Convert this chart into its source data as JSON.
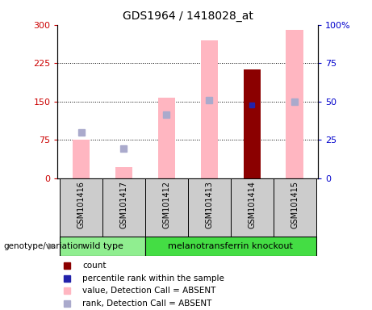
{
  "title": "GDS1964 / 1418028_at",
  "samples": [
    "GSM101416",
    "GSM101417",
    "GSM101412",
    "GSM101413",
    "GSM101414",
    "GSM101415"
  ],
  "pink_bar_heights": [
    75,
    22,
    158,
    270,
    0,
    290
  ],
  "dark_red_bar_height": [
    0,
    0,
    0,
    0,
    213,
    0
  ],
  "blue_marker_val": [
    0,
    0,
    0,
    0,
    143,
    0
  ],
  "light_blue_markers": [
    90,
    58,
    125,
    152,
    0,
    150
  ],
  "ylim_left": [
    0,
    300
  ],
  "ylim_right": [
    0,
    100
  ],
  "yticks_left": [
    0,
    75,
    150,
    225,
    300
  ],
  "yticks_right": [
    0,
    25,
    50,
    75,
    100
  ],
  "genotype_labels": [
    "wild type",
    "melanotransferrin knockout"
  ],
  "wt_color": "#90EE90",
  "mt_color": "#44DD44",
  "bar_width": 0.4,
  "pink_color": "#FFB6C1",
  "dark_red_color": "#8B0000",
  "blue_color": "#2222AA",
  "light_blue_color": "#AAAACC",
  "left_axis_color": "#CC0000",
  "right_axis_color": "#0000CC",
  "label_bg_color": "#CCCCCC",
  "plot_bg_color": "#FFFFFF",
  "legend_items": [
    "count",
    "percentile rank within the sample",
    "value, Detection Call = ABSENT",
    "rank, Detection Call = ABSENT"
  ],
  "legend_colors": [
    "#8B0000",
    "#2222AA",
    "#FFB6C1",
    "#AAAACC"
  ]
}
